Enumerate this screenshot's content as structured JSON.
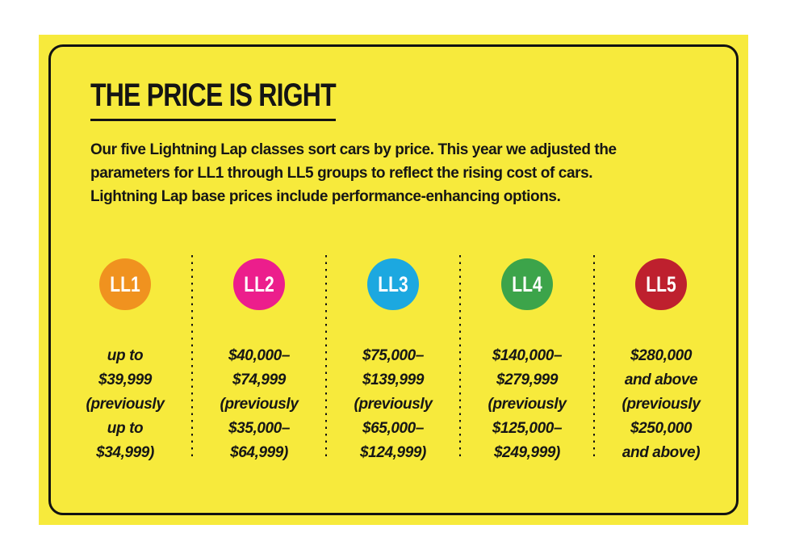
{
  "header": {
    "title": "THE PRICE IS RIGHT",
    "description_lines": [
      "Our five Lightning Lap classes sort cars by price. This year we adjusted the",
      "parameters for LL1 through LL5 groups to reflect the rising cost of cars.",
      "Lightning Lap base prices include performance-enhancing options."
    ]
  },
  "classes": [
    {
      "label": "LL1",
      "color": "#F0921F",
      "price_lines": [
        "up to",
        "$39,999",
        "(previously",
        "up to",
        "$34,999)"
      ]
    },
    {
      "label": "LL2",
      "color": "#EC1E8C",
      "price_lines": [
        "$40,000–",
        "$74,999",
        "(previously",
        "$35,000–",
        "$64,999)"
      ]
    },
    {
      "label": "LL3",
      "color": "#1CA8E0",
      "price_lines": [
        "$75,000–",
        "$139,999",
        "(previously",
        "$65,000–",
        "$124,999)"
      ]
    },
    {
      "label": "LL4",
      "color": "#3CA44A",
      "price_lines": [
        "$140,000–",
        "$279,999",
        "(previously",
        "$125,000–",
        "$249,999)"
      ]
    },
    {
      "label": "LL5",
      "color": "#BE202E",
      "price_lines": [
        "$280,000",
        "and above",
        "(previously",
        "$250,000",
        "and above)"
      ]
    }
  ],
  "colors": {
    "page_background": "#FFFFFF",
    "card_background": "#F7EA3C",
    "border": "#121212",
    "text": "#161616",
    "circle_text": "#FFFFFF"
  }
}
